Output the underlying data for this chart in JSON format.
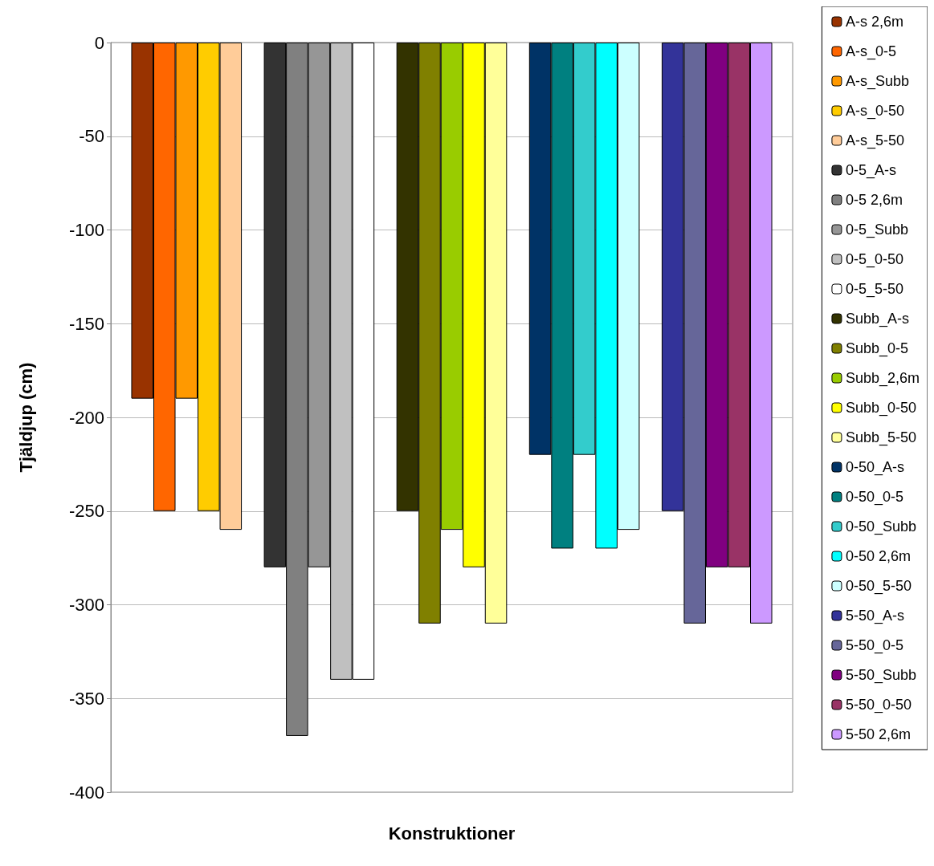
{
  "chart_data": {
    "type": "bar",
    "xlabel": "Konstruktioner",
    "ylabel": "Tjäldjup (cm)",
    "categories": [
      null
    ],
    "ylim": [
      -400,
      0
    ],
    "yticks": [
      -400,
      -350,
      -300,
      -250,
      -200,
      -150,
      -100,
      -50,
      0
    ],
    "grid": "y",
    "legend": "right",
    "series": [
      {
        "name": "A-s 2,6m",
        "color": "#993300",
        "values": [
          -190
        ]
      },
      {
        "name": "A-s_0-5",
        "color": "#ff6600",
        "values": [
          -250
        ]
      },
      {
        "name": "A-s_Subb",
        "color": "#ff9900",
        "values": [
          -190
        ]
      },
      {
        "name": "A-s_0-50",
        "color": "#ffcc00",
        "values": [
          -250
        ]
      },
      {
        "name": "A-s_5-50",
        "color": "#ffcc99",
        "values": [
          -260
        ]
      },
      {
        "name": "0-5_A-s",
        "color": "#333333",
        "values": [
          -280
        ]
      },
      {
        "name": "0-5 2,6m",
        "color": "#808080",
        "values": [
          -370
        ]
      },
      {
        "name": "0-5_Subb",
        "color": "#969696",
        "values": [
          -280
        ]
      },
      {
        "name": "0-5_0-50",
        "color": "#c0c0c0",
        "values": [
          -340
        ]
      },
      {
        "name": "0-5_5-50",
        "color": "#ffffff",
        "values": [
          -340
        ]
      },
      {
        "name": "Subb_A-s",
        "color": "#333300",
        "values": [
          -250
        ]
      },
      {
        "name": "Subb_0-5",
        "color": "#808000",
        "values": [
          -310
        ]
      },
      {
        "name": "Subb_2,6m",
        "color": "#99cc00",
        "values": [
          -260
        ]
      },
      {
        "name": "Subb_0-50",
        "color": "#ffff00",
        "values": [
          -280
        ]
      },
      {
        "name": "Subb_5-50",
        "color": "#ffff99",
        "values": [
          -310
        ]
      },
      {
        "name": "0-50_A-s",
        "color": "#003366",
        "values": [
          -220
        ]
      },
      {
        "name": "0-50_0-5",
        "color": "#008080",
        "values": [
          -270
        ]
      },
      {
        "name": "0-50_Subb",
        "color": "#33cccc",
        "values": [
          -220
        ]
      },
      {
        "name": "0-50 2,6m",
        "color": "#00ffff",
        "values": [
          -270
        ]
      },
      {
        "name": "0-50_5-50",
        "color": "#ccffff",
        "values": [
          -260
        ]
      },
      {
        "name": "5-50_A-s",
        "color": "#333399",
        "values": [
          -250
        ]
      },
      {
        "name": "5-50_0-5",
        "color": "#666699",
        "values": [
          -310
        ]
      },
      {
        "name": "5-50_Subb",
        "color": "#800080",
        "values": [
          -280
        ]
      },
      {
        "name": "5-50_0-50",
        "color": "#993366",
        "values": [
          -280
        ]
      },
      {
        "name": "5-50 2,6m",
        "color": "#cc99ff",
        "values": [
          -310
        ]
      }
    ]
  }
}
